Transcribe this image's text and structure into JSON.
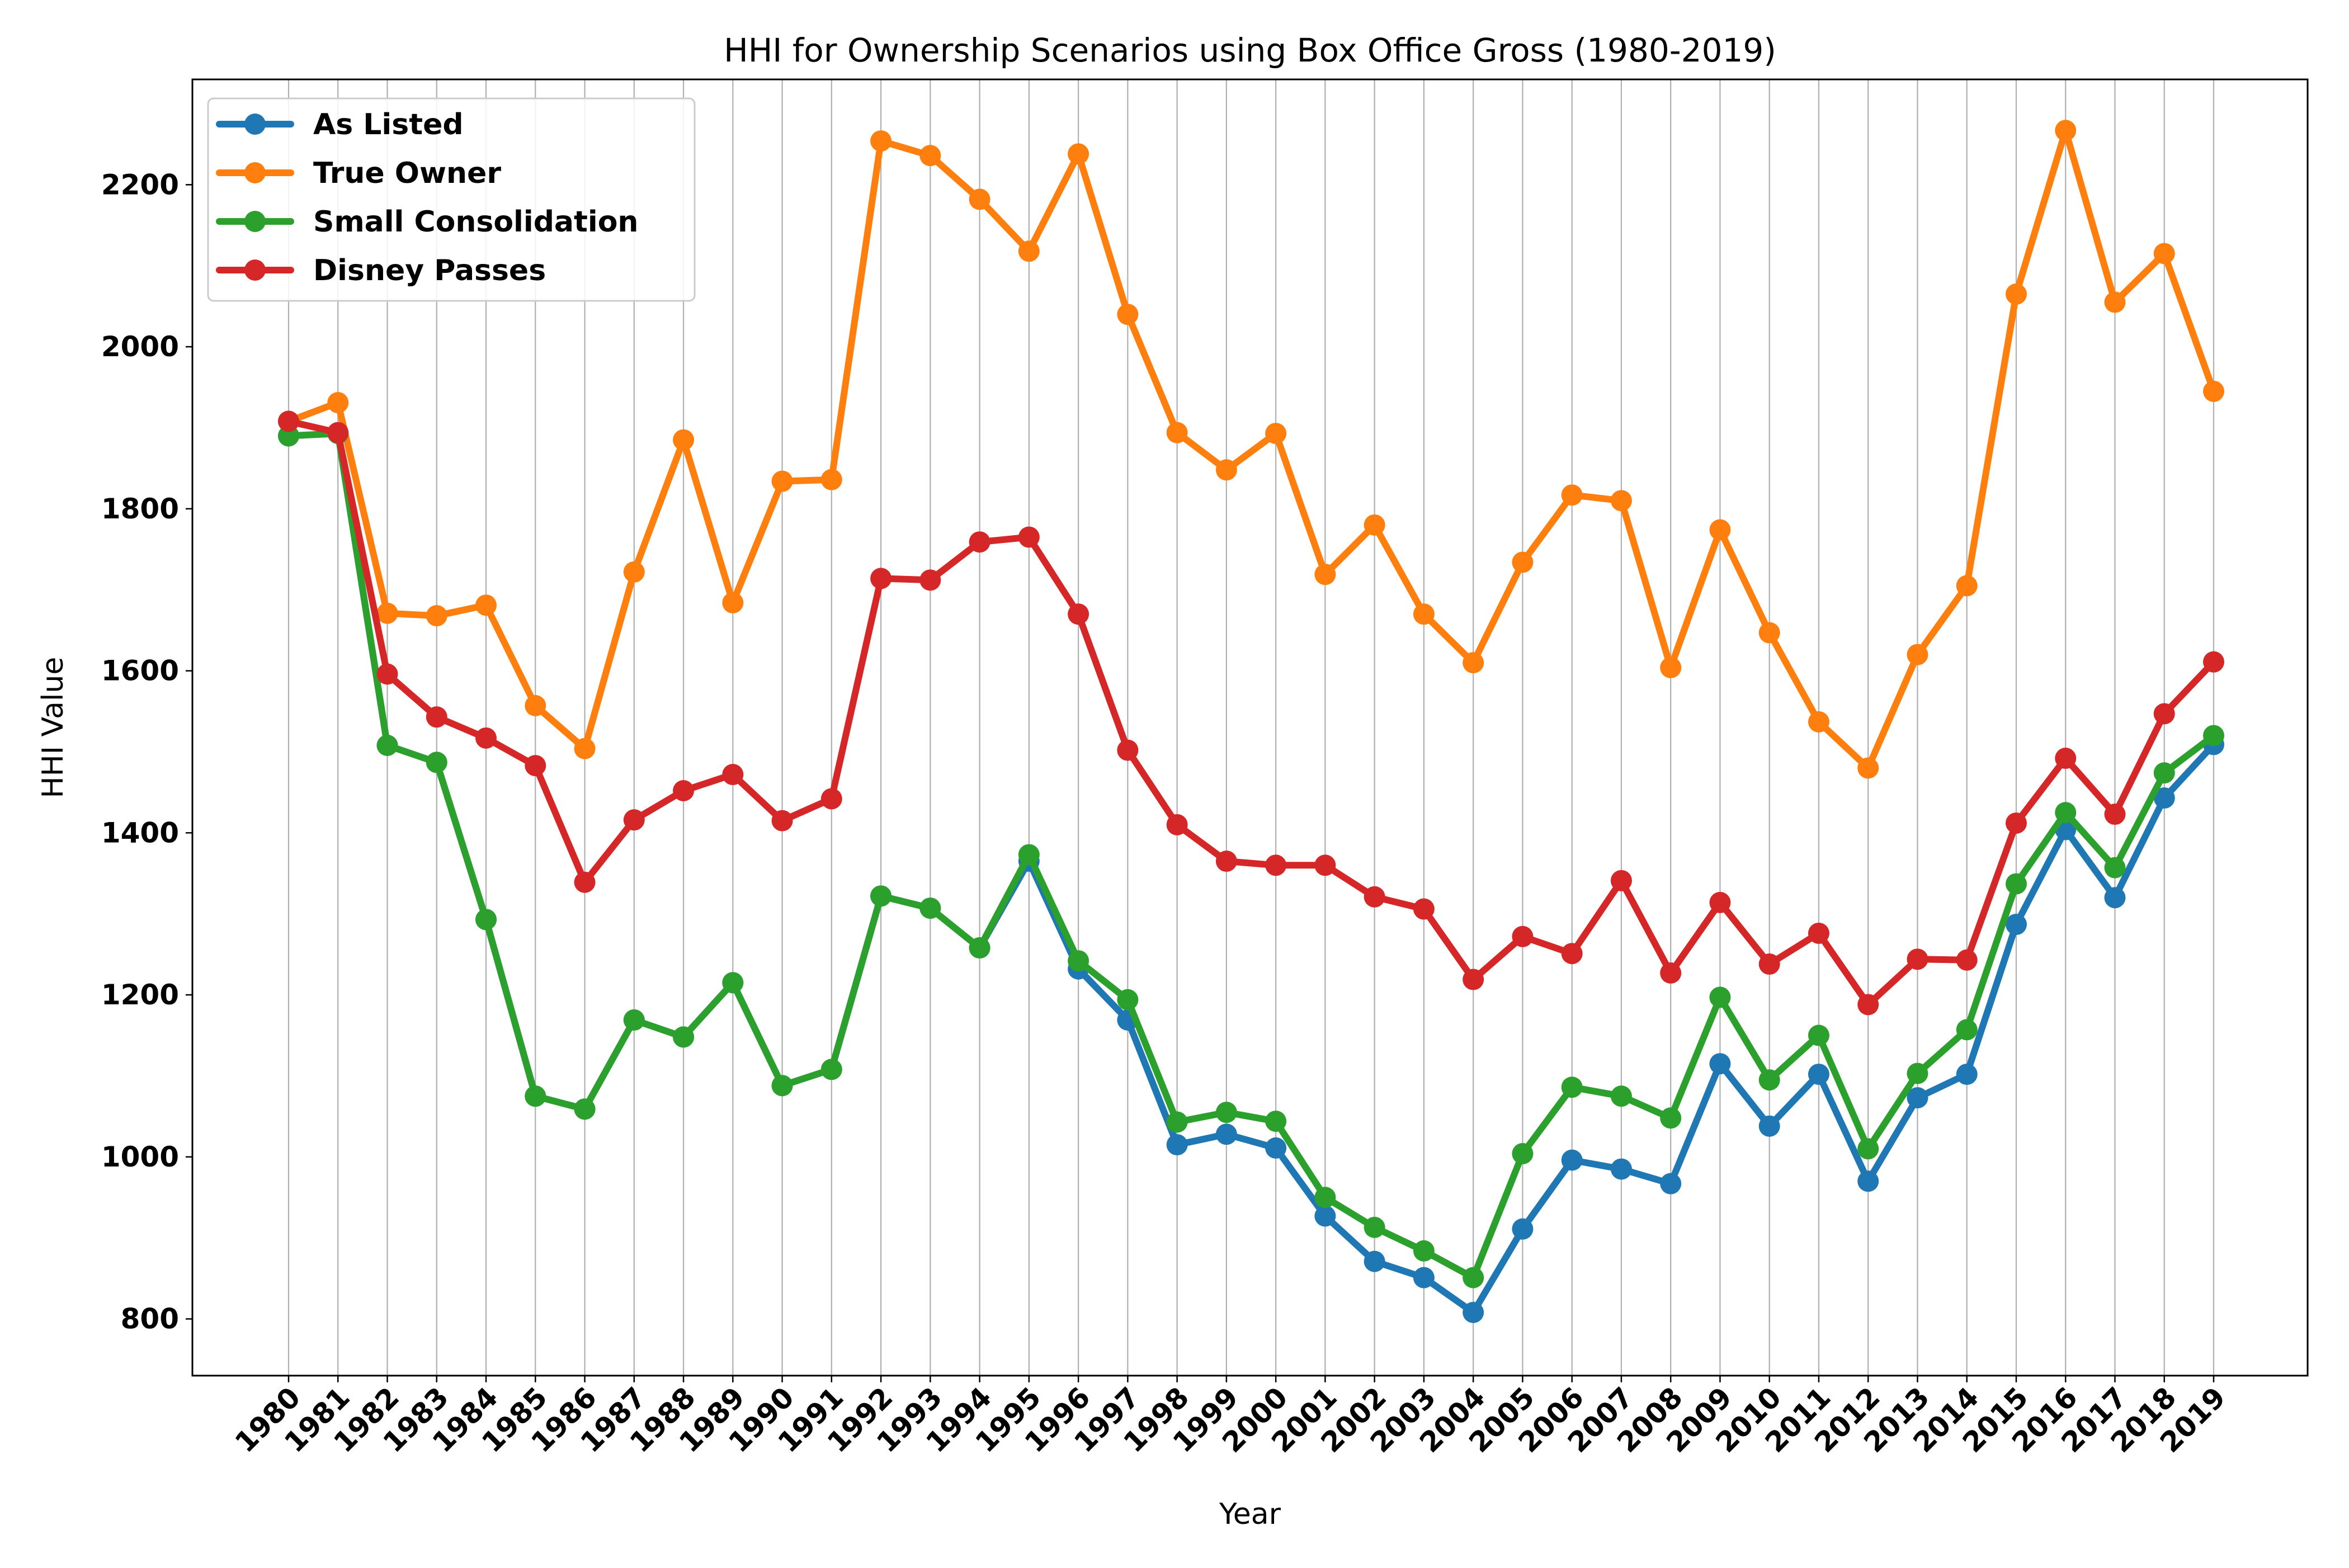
{
  "chart_data": {
    "type": "line",
    "title": "HHI for Ownership Scenarios using Box Office Gross (1980-2019)",
    "xlabel": "Year",
    "ylabel": "HHI Value",
    "x": [
      "1980",
      "1981",
      "1982",
      "1983",
      "1984",
      "1985",
      "1986",
      "1987",
      "1988",
      "1989",
      "1990",
      "1991",
      "1992",
      "1993",
      "1994",
      "1995",
      "1996",
      "1997",
      "1998",
      "1999",
      "2000",
      "2001",
      "2002",
      "2003",
      "2004",
      "2005",
      "2006",
      "2007",
      "2008",
      "2009",
      "2010",
      "2011",
      "2012",
      "2013",
      "2014",
      "2015",
      "2016",
      "2017",
      "2018",
      "2019"
    ],
    "yticks": [
      800,
      1000,
      1200,
      1400,
      1600,
      1800,
      2000,
      2200
    ],
    "ylim": [
      730,
      2330
    ],
    "grid": "vertical",
    "legend": "top-left",
    "series": [
      {
        "name": "As Listed",
        "color": "#1f77b4",
        "values": [
          1890,
          1893,
          1508,
          1487,
          1293,
          1075,
          1059,
          1169,
          1148,
          1215,
          1088,
          1108,
          1322,
          1307,
          1258,
          1365,
          1232,
          1169,
          1015,
          1028,
          1011,
          927,
          871,
          851,
          808,
          911,
          996,
          985,
          967,
          1115,
          1038,
          1102,
          970,
          1073,
          1102,
          1287,
          1404,
          1320,
          1443,
          1509
        ]
      },
      {
        "name": "True Owner",
        "color": "#ff7f0e",
        "values": [
          1908,
          1931,
          1671,
          1668,
          1681,
          1557,
          1504,
          1722,
          1885,
          1684,
          1834,
          1836,
          2254,
          2236,
          2182,
          2118,
          2238,
          2040,
          1894,
          1848,
          1893,
          1719,
          1780,
          1670,
          1610,
          1734,
          1817,
          1810,
          1604,
          1774,
          1647,
          1537,
          1480,
          1620,
          1705,
          2065,
          2267,
          2055,
          2115,
          1945
        ]
      },
      {
        "name": "Small Consolidation",
        "color": "#2ca02c",
        "values": [
          1890,
          1893,
          1508,
          1487,
          1293,
          1075,
          1059,
          1169,
          1148,
          1215,
          1088,
          1108,
          1322,
          1307,
          1258,
          1373,
          1242,
          1194,
          1043,
          1055,
          1044,
          950,
          913,
          884,
          851,
          1004,
          1086,
          1075,
          1048,
          1197,
          1095,
          1150,
          1010,
          1103,
          1157,
          1337,
          1425,
          1357,
          1474,
          1520
        ]
      },
      {
        "name": "Disney Passes",
        "color": "#d62728",
        "values": [
          1908,
          1894,
          1596,
          1543,
          1517,
          1483,
          1339,
          1416,
          1452,
          1472,
          1415,
          1442,
          1714,
          1712,
          1759,
          1765,
          1670,
          1502,
          1410,
          1365,
          1360,
          1360,
          1321,
          1306,
          1219,
          1272,
          1251,
          1341,
          1227,
          1314,
          1238,
          1276,
          1188,
          1244,
          1243,
          1412,
          1492,
          1423,
          1547,
          1611
        ]
      }
    ]
  }
}
